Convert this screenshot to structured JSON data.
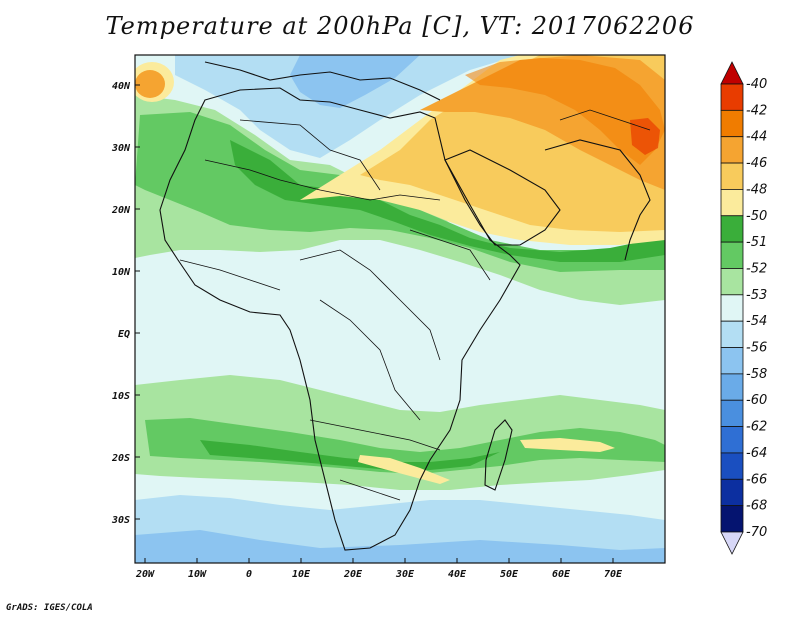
{
  "title": "Temperature at 200hPa [C], VT: 2017062206",
  "credit": "GrADS: IGES/COLA",
  "map": {
    "lat_labels": [
      "40N",
      "30N",
      "20N",
      "10N",
      "EQ",
      "10S",
      "20S",
      "30S"
    ],
    "lon_labels": [
      "20W",
      "10W",
      "0",
      "10E",
      "20E",
      "30E",
      "40E",
      "50E",
      "60E",
      "70E"
    ]
  },
  "colorbar": {
    "colors": [
      "#c00000",
      "#e83c00",
      "#f07c00",
      "#f5a431",
      "#f8cb5c",
      "#fbeb9c",
      "#3aae3a",
      "#63c963",
      "#a8e4a0",
      "#e0f6f5",
      "#b3def3",
      "#8cc4f0",
      "#6aabe8",
      "#4a8fdf",
      "#2f6fd4",
      "#1a4fc0",
      "#0c2fa0",
      "#051470",
      "#d8d8f8"
    ],
    "labels": [
      "-40",
      "-42",
      "-44",
      "-46",
      "-48",
      "-50",
      "-51",
      "-52",
      "-53",
      "-54",
      "-56",
      "-58",
      "-60",
      "-62",
      "-64",
      "-66",
      "-68",
      "-70"
    ]
  },
  "colors": {
    "ocean": "#e0f6f5",
    "green_dark": "#3aae3a",
    "green_mid": "#63c963",
    "green_light": "#a8e4a0",
    "blue_light": "#b3def3",
    "blue_mid": "#8cc4f0",
    "yellow": "#fbeb9c",
    "yellow_orange": "#f8cb5c",
    "orange": "#f5a431",
    "orange_dark": "#f07c00",
    "red_orange": "#e83c00"
  }
}
